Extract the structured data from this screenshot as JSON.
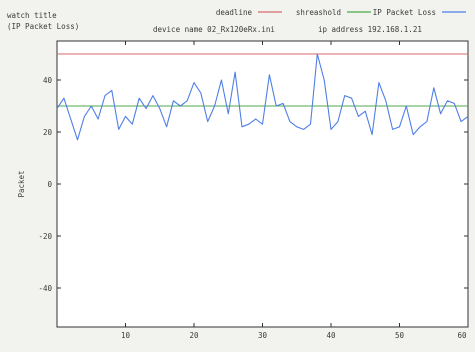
{
  "header": {
    "watch_title_line1": "watch title",
    "watch_title_line2": "(IP Packet Loss)",
    "device_name": "device name 02_Rx120eRx.ini",
    "ip_address": "ip address 192.168.1.21"
  },
  "chart_data": {
    "type": "line",
    "title": "",
    "xlabel": "",
    "ylabel": "Packet",
    "xlim": [
      0,
      60
    ],
    "ylim": [
      -55,
      55
    ],
    "xticks": [
      10,
      20,
      30,
      40,
      50,
      60
    ],
    "yticks": [
      -40,
      -20,
      0,
      20,
      40
    ],
    "grid": false,
    "legend": "top-right",
    "series": [
      {
        "name": "deadline",
        "color": "#d96b6b",
        "x": [
          0,
          60
        ],
        "values": [
          50,
          50
        ]
      },
      {
        "name": "shreashold",
        "color": "#4caa4c",
        "x": [
          0,
          60
        ],
        "values": [
          30,
          30
        ]
      },
      {
        "name": "IP Packet Loss",
        "color": "#4f7fe6",
        "x": [
          0,
          1,
          2,
          3,
          4,
          5,
          6,
          7,
          8,
          9,
          10,
          11,
          12,
          13,
          14,
          15,
          16,
          17,
          18,
          19,
          20,
          21,
          22,
          23,
          24,
          25,
          26,
          27,
          28,
          29,
          30,
          31,
          32,
          33,
          34,
          35,
          36,
          37,
          38,
          39,
          40,
          41,
          42,
          43,
          44,
          45,
          46,
          47,
          48,
          49,
          50,
          51,
          52,
          53,
          54,
          55,
          56,
          57,
          58,
          59,
          60
        ],
        "values": [
          29,
          33,
          25,
          17,
          26,
          30,
          25,
          34,
          36,
          21,
          26,
          23,
          33,
          29,
          34,
          29,
          22,
          32,
          30,
          32,
          39,
          35,
          24,
          30,
          40,
          27,
          43,
          22,
          23,
          25,
          23,
          42,
          30,
          31,
          24,
          22,
          21,
          23,
          50,
          40,
          21,
          24,
          34,
          33,
          26,
          28,
          19,
          39,
          32,
          21,
          22,
          30,
          19,
          22,
          24,
          37,
          27,
          32,
          31,
          24,
          26
        ]
      }
    ]
  }
}
